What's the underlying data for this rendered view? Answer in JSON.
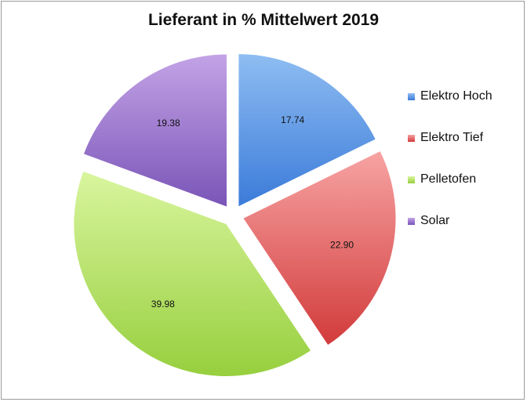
{
  "chart_data": {
    "type": "pie",
    "title": "Lieferant in % Mittelwert 2019",
    "categories": [
      "Elektro Hoch",
      "Elektro Tief",
      "Pelletofen",
      "Solar"
    ],
    "values": [
      17.74,
      22.9,
      39.98,
      19.38
    ],
    "colors": [
      {
        "light": "#8fbdf2",
        "dark": "#3b7bd9"
      },
      {
        "light": "#f7a3a3",
        "dark": "#d23b3b"
      },
      {
        "light": "#d9f59e",
        "dark": "#97cf3e"
      },
      {
        "light": "#c3a3e6",
        "dark": "#7a55b8"
      }
    ],
    "exploded": true,
    "legend_position": "right"
  }
}
